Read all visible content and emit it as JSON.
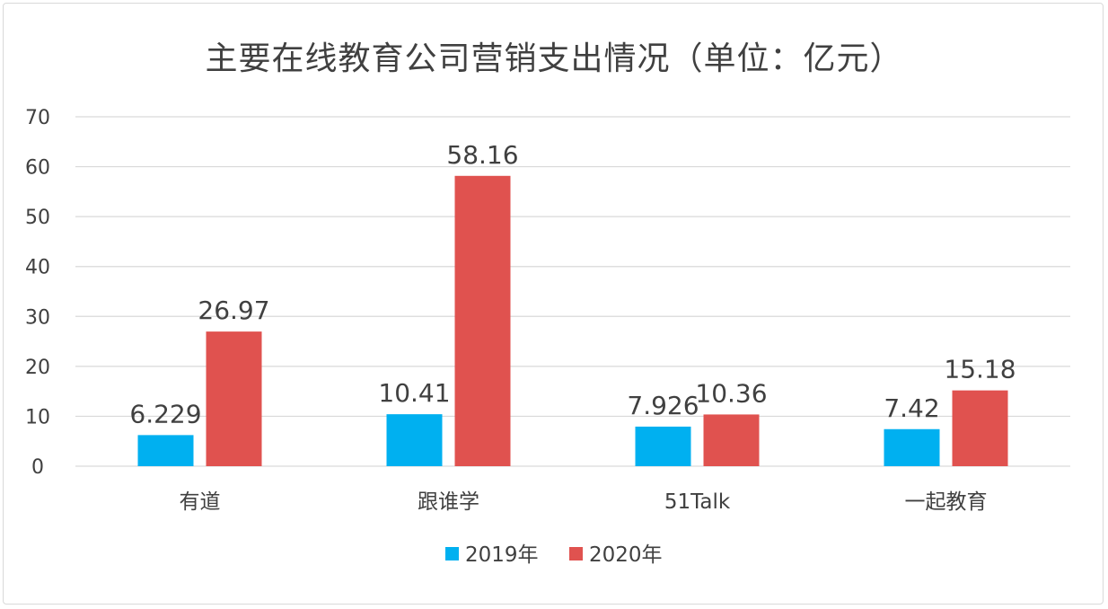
{
  "chart_data": {
    "type": "bar",
    "title": "主要在线教育公司营销支出情况（单位：亿元）",
    "categories": [
      "有道",
      "跟谁学",
      "51Talk",
      "一起教育"
    ],
    "series": [
      {
        "name": "2019年",
        "color": "#00b0f0",
        "values": [
          6.229,
          10.41,
          7.926,
          7.42
        ],
        "labels": [
          "6.229",
          "10.41",
          "7.926",
          "7.42"
        ]
      },
      {
        "name": "2020年",
        "color": "#e0524f",
        "values": [
          26.97,
          58.16,
          10.36,
          15.18
        ],
        "labels": [
          "26.97",
          "58.16",
          "10.36",
          "15.18"
        ]
      }
    ],
    "ylim": [
      0,
      70
    ],
    "yticks": [
      0,
      10,
      20,
      30,
      40,
      50,
      60,
      70
    ],
    "grid": true,
    "legend_position": "bottom"
  }
}
